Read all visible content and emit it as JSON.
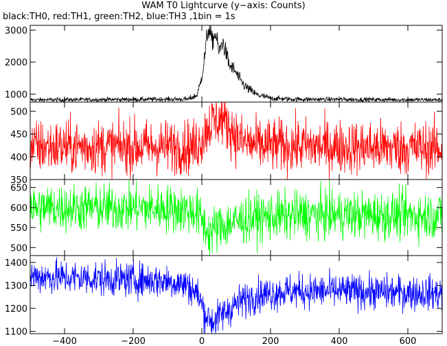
{
  "chart_data": {
    "type": "line",
    "title": "WAM T0 Lightcurve (y−axis: Counts)",
    "subtitle": "black:TH0, red:TH1, green:TH2, blue:TH3 ,1bin = 1s",
    "xlim": [
      -500,
      700
    ],
    "x_ticks": [
      -400,
      -200,
      0,
      200,
      400,
      600
    ],
    "x_tick_labels": [
      "−400",
      "−200",
      "0",
      "200",
      "400",
      "600"
    ],
    "bin_seconds": 1,
    "grid": false,
    "panels": [
      {
        "name": "TH0",
        "color": "#000000",
        "ylim": [
          750,
          3150
        ],
        "y_ticks": [
          1000,
          2000,
          3000
        ],
        "y_tick_labels": [
          "1000",
          "2000",
          "3000"
        ],
        "profile": {
          "baseline": 820,
          "noise": 18,
          "keypoints": [
            [
              -500,
              820
            ],
            [
              -40,
              840
            ],
            [
              -15,
              960
            ],
            [
              -5,
              1300
            ],
            [
              5,
              1900
            ],
            [
              15,
              2800
            ],
            [
              20,
              3050
            ],
            [
              30,
              2650
            ],
            [
              40,
              2900
            ],
            [
              50,
              2300
            ],
            [
              60,
              2650
            ],
            [
              70,
              2300
            ],
            [
              80,
              1900
            ],
            [
              95,
              1750
            ],
            [
              110,
              1450
            ],
            [
              130,
              1200
            ],
            [
              160,
              980
            ],
            [
              200,
              870
            ],
            [
              260,
              840
            ],
            [
              700,
              820
            ]
          ]
        }
      },
      {
        "name": "TH1",
        "color": "#ff0000",
        "ylim": [
          350,
          520
        ],
        "y_ticks": [
          350,
          400,
          450,
          500
        ],
        "y_tick_labels": [
          "350",
          "400",
          "450",
          "500"
        ],
        "profile": {
          "baseline": 420,
          "noise": 30,
          "keypoints": [
            [
              -500,
              422
            ],
            [
              -20,
              422
            ],
            [
              0,
              440
            ],
            [
              20,
              470
            ],
            [
              40,
              480
            ],
            [
              60,
              485
            ],
            [
              80,
              465
            ],
            [
              110,
              435
            ],
            [
              160,
              425
            ],
            [
              700,
              418
            ]
          ]
        }
      },
      {
        "name": "TH2",
        "color": "#00ff00",
        "ylim": [
          480,
          670
        ],
        "y_ticks": [
          500,
          550,
          600,
          650
        ],
        "y_tick_labels": [
          "500",
          "550",
          "600",
          "650"
        ],
        "profile": {
          "baseline": 595,
          "noise": 30,
          "keypoints": [
            [
              -500,
              600
            ],
            [
              -100,
              598
            ],
            [
              -20,
              590
            ],
            [
              0,
              570
            ],
            [
              20,
              535
            ],
            [
              40,
              548
            ],
            [
              80,
              560
            ],
            [
              150,
              575
            ],
            [
              300,
              582
            ],
            [
              700,
              580
            ]
          ]
        }
      },
      {
        "name": "TH3",
        "color": "#0000ff",
        "ylim": [
          1090,
          1430
        ],
        "y_ticks": [
          1100,
          1200,
          1300,
          1400
        ],
        "y_tick_labels": [
          "1100",
          "1200",
          "1300",
          "1400"
        ],
        "profile": {
          "baseline": 1330,
          "noise": 38,
          "keypoints": [
            [
              -500,
              1340
            ],
            [
              -300,
              1330
            ],
            [
              -100,
              1320
            ],
            [
              -40,
              1300
            ],
            [
              -10,
              1255
            ],
            [
              10,
              1175
            ],
            [
              30,
              1140
            ],
            [
              60,
              1175
            ],
            [
              100,
              1220
            ],
            [
              150,
              1255
            ],
            [
              250,
              1275
            ],
            [
              400,
              1275
            ],
            [
              700,
              1265
            ]
          ]
        }
      }
    ]
  }
}
